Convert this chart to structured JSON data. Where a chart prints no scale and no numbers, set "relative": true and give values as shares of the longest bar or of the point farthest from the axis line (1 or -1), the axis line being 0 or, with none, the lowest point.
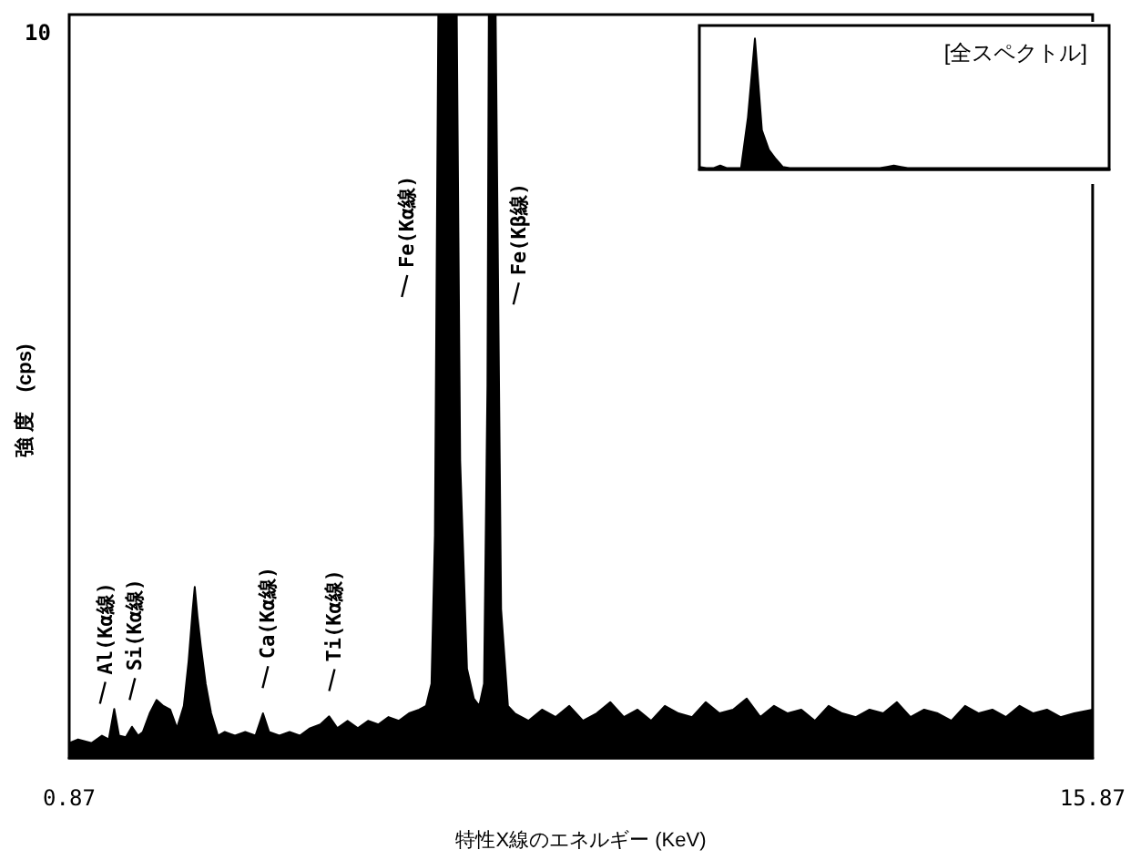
{
  "chart_data": [
    {
      "type": "area",
      "relative": true,
      "xlabel": "特性X線のエネルギー (KeV)",
      "ylabel": "強 度　(cps)",
      "xlim": [
        0.87,
        15.87
      ],
      "xticks": [
        0.87,
        15.87
      ],
      "grid": false,
      "color": "#000000",
      "annotations": [
        "10",
        "Al(Kα線)",
        "Si(Kα線)",
        "Ca(Kα線)",
        "Ti(Kα線)",
        "Fe(Kα線)",
        "Fe(Kβ線)"
      ],
      "x": [
        0.87,
        1.0,
        1.2,
        1.35,
        1.45,
        1.53,
        1.6,
        1.7,
        1.79,
        1.88,
        1.95,
        2.05,
        2.15,
        2.25,
        2.35,
        2.45,
        2.55,
        2.62,
        2.68,
        2.71,
        2.75,
        2.8,
        2.87,
        2.95,
        3.05,
        3.15,
        3.3,
        3.45,
        3.6,
        3.71,
        3.8,
        3.95,
        4.1,
        4.25,
        4.4,
        4.55,
        4.68,
        4.8,
        4.95,
        5.1,
        5.25,
        5.4,
        5.55,
        5.7,
        5.85,
        6.0,
        6.1,
        6.18,
        6.23,
        6.28,
        6.55,
        6.6,
        6.7,
        6.8,
        6.88,
        6.95,
        7.0,
        7.02,
        7.12,
        7.15,
        7.2,
        7.3,
        7.4,
        7.6,
        7.8,
        8.0,
        8.2,
        8.4,
        8.6,
        8.8,
        9.0,
        9.2,
        9.4,
        9.6,
        9.8,
        10.0,
        10.2,
        10.4,
        10.6,
        10.8,
        11.0,
        11.2,
        11.4,
        11.6,
        11.8,
        12.0,
        12.2,
        12.4,
        12.6,
        12.8,
        13.0,
        13.2,
        13.4,
        13.6,
        13.8,
        14.0,
        14.2,
        14.4,
        14.6,
        14.8,
        15.0,
        15.2,
        15.4,
        15.6,
        15.87
      ],
      "values": [
        0.02,
        0.025,
        0.02,
        0.03,
        0.025,
        0.066,
        0.03,
        0.028,
        0.042,
        0.03,
        0.035,
        0.06,
        0.078,
        0.07,
        0.065,
        0.04,
        0.07,
        0.13,
        0.2,
        0.23,
        0.19,
        0.15,
        0.1,
        0.06,
        0.03,
        0.035,
        0.03,
        0.035,
        0.03,
        0.06,
        0.035,
        0.03,
        0.035,
        0.03,
        0.04,
        0.045,
        0.056,
        0.04,
        0.05,
        0.04,
        0.05,
        0.045,
        0.055,
        0.05,
        0.06,
        0.065,
        0.07,
        0.1,
        0.3,
        1,
        1,
        0.4,
        0.12,
        0.08,
        0.07,
        0.1,
        0.5,
        1,
        1,
        0.7,
        0.2,
        0.07,
        0.06,
        0.05,
        0.065,
        0.055,
        0.07,
        0.05,
        0.06,
        0.075,
        0.055,
        0.065,
        0.05,
        0.07,
        0.06,
        0.055,
        0.075,
        0.06,
        0.065,
        0.08,
        0.055,
        0.07,
        0.06,
        0.065,
        0.05,
        0.07,
        0.06,
        0.055,
        0.065,
        0.06,
        0.075,
        0.055,
        0.065,
        0.06,
        0.05,
        0.07,
        0.06,
        0.065,
        0.055,
        0.07,
        0.06,
        0.065,
        0.055,
        0.06,
        0.065
      ]
    },
    {
      "type": "area",
      "relative": true,
      "title": "[全スペクトル]",
      "color": "#000000",
      "categories": [
        null,
        null,
        null,
        null,
        null,
        null,
        null,
        null,
        null,
        null,
        null,
        null,
        null,
        null,
        null,
        null,
        null,
        null,
        null,
        null,
        null,
        null,
        null,
        null,
        null,
        null,
        null,
        null,
        null,
        null,
        null,
        null,
        null,
        null,
        null,
        null,
        null,
        null,
        null,
        null,
        null,
        null,
        null,
        null,
        null,
        null,
        null,
        null,
        null,
        null,
        null,
        null,
        null,
        null,
        null,
        null,
        null,
        null,
        null,
        null
      ],
      "values": [
        0.02,
        0.01,
        0.01,
        0.03,
        0.01,
        0.01,
        0.01,
        0.4,
        1,
        0.3,
        0.15,
        0.08,
        0.02,
        0.01,
        0.01,
        0.01,
        0.01,
        0.01,
        0.01,
        0.01,
        0.01,
        0.01,
        0.01,
        0.01,
        0.01,
        0.01,
        0.01,
        0.02,
        0.03,
        0.02,
        0.01,
        0.01,
        0.01,
        0.01,
        0.01,
        0.01,
        0.01,
        0.01,
        0.01,
        0.01,
        0.01,
        0.01,
        0.01,
        0.01,
        0.01,
        0.01,
        0.01,
        0.01,
        0.01,
        0.01,
        0.01,
        0.01,
        0.01,
        0.01,
        0.01,
        0.01,
        0.01,
        0.01,
        0.01,
        0.01
      ]
    }
  ]
}
